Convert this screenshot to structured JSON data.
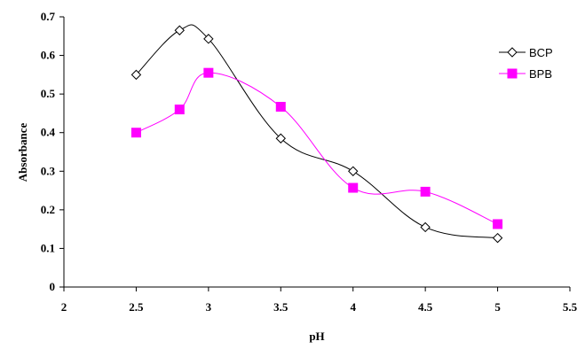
{
  "chart_data": {
    "type": "line",
    "xlabel": "pH",
    "ylabel": "Absorbance",
    "xlim": [
      2,
      5.5
    ],
    "ylim": [
      0,
      0.7
    ],
    "x_ticks": [
      "2",
      "2.5",
      "3",
      "3.5",
      "4",
      "4.5",
      "5",
      "5.5"
    ],
    "y_ticks": [
      "0",
      "0.1",
      "0.2",
      "0.3",
      "0.4",
      "0.5",
      "0.6",
      "0.7"
    ],
    "grid": false,
    "legend_position": "top-right",
    "smooth": true,
    "series": [
      {
        "name": "BCP",
        "color": "#000000",
        "marker": "diamond-open",
        "x": [
          2.5,
          2.8,
          3.0,
          3.5,
          4.0,
          4.5,
          5.0
        ],
        "y": [
          0.55,
          0.665,
          0.643,
          0.385,
          0.3,
          0.155,
          0.127
        ]
      },
      {
        "name": "BPB",
        "color": "#ff00ff",
        "marker": "square-filled",
        "x": [
          2.5,
          2.8,
          3.0,
          3.5,
          4.0,
          4.5,
          5.0
        ],
        "y": [
          0.4,
          0.46,
          0.555,
          0.467,
          0.257,
          0.247,
          0.163
        ]
      }
    ]
  }
}
